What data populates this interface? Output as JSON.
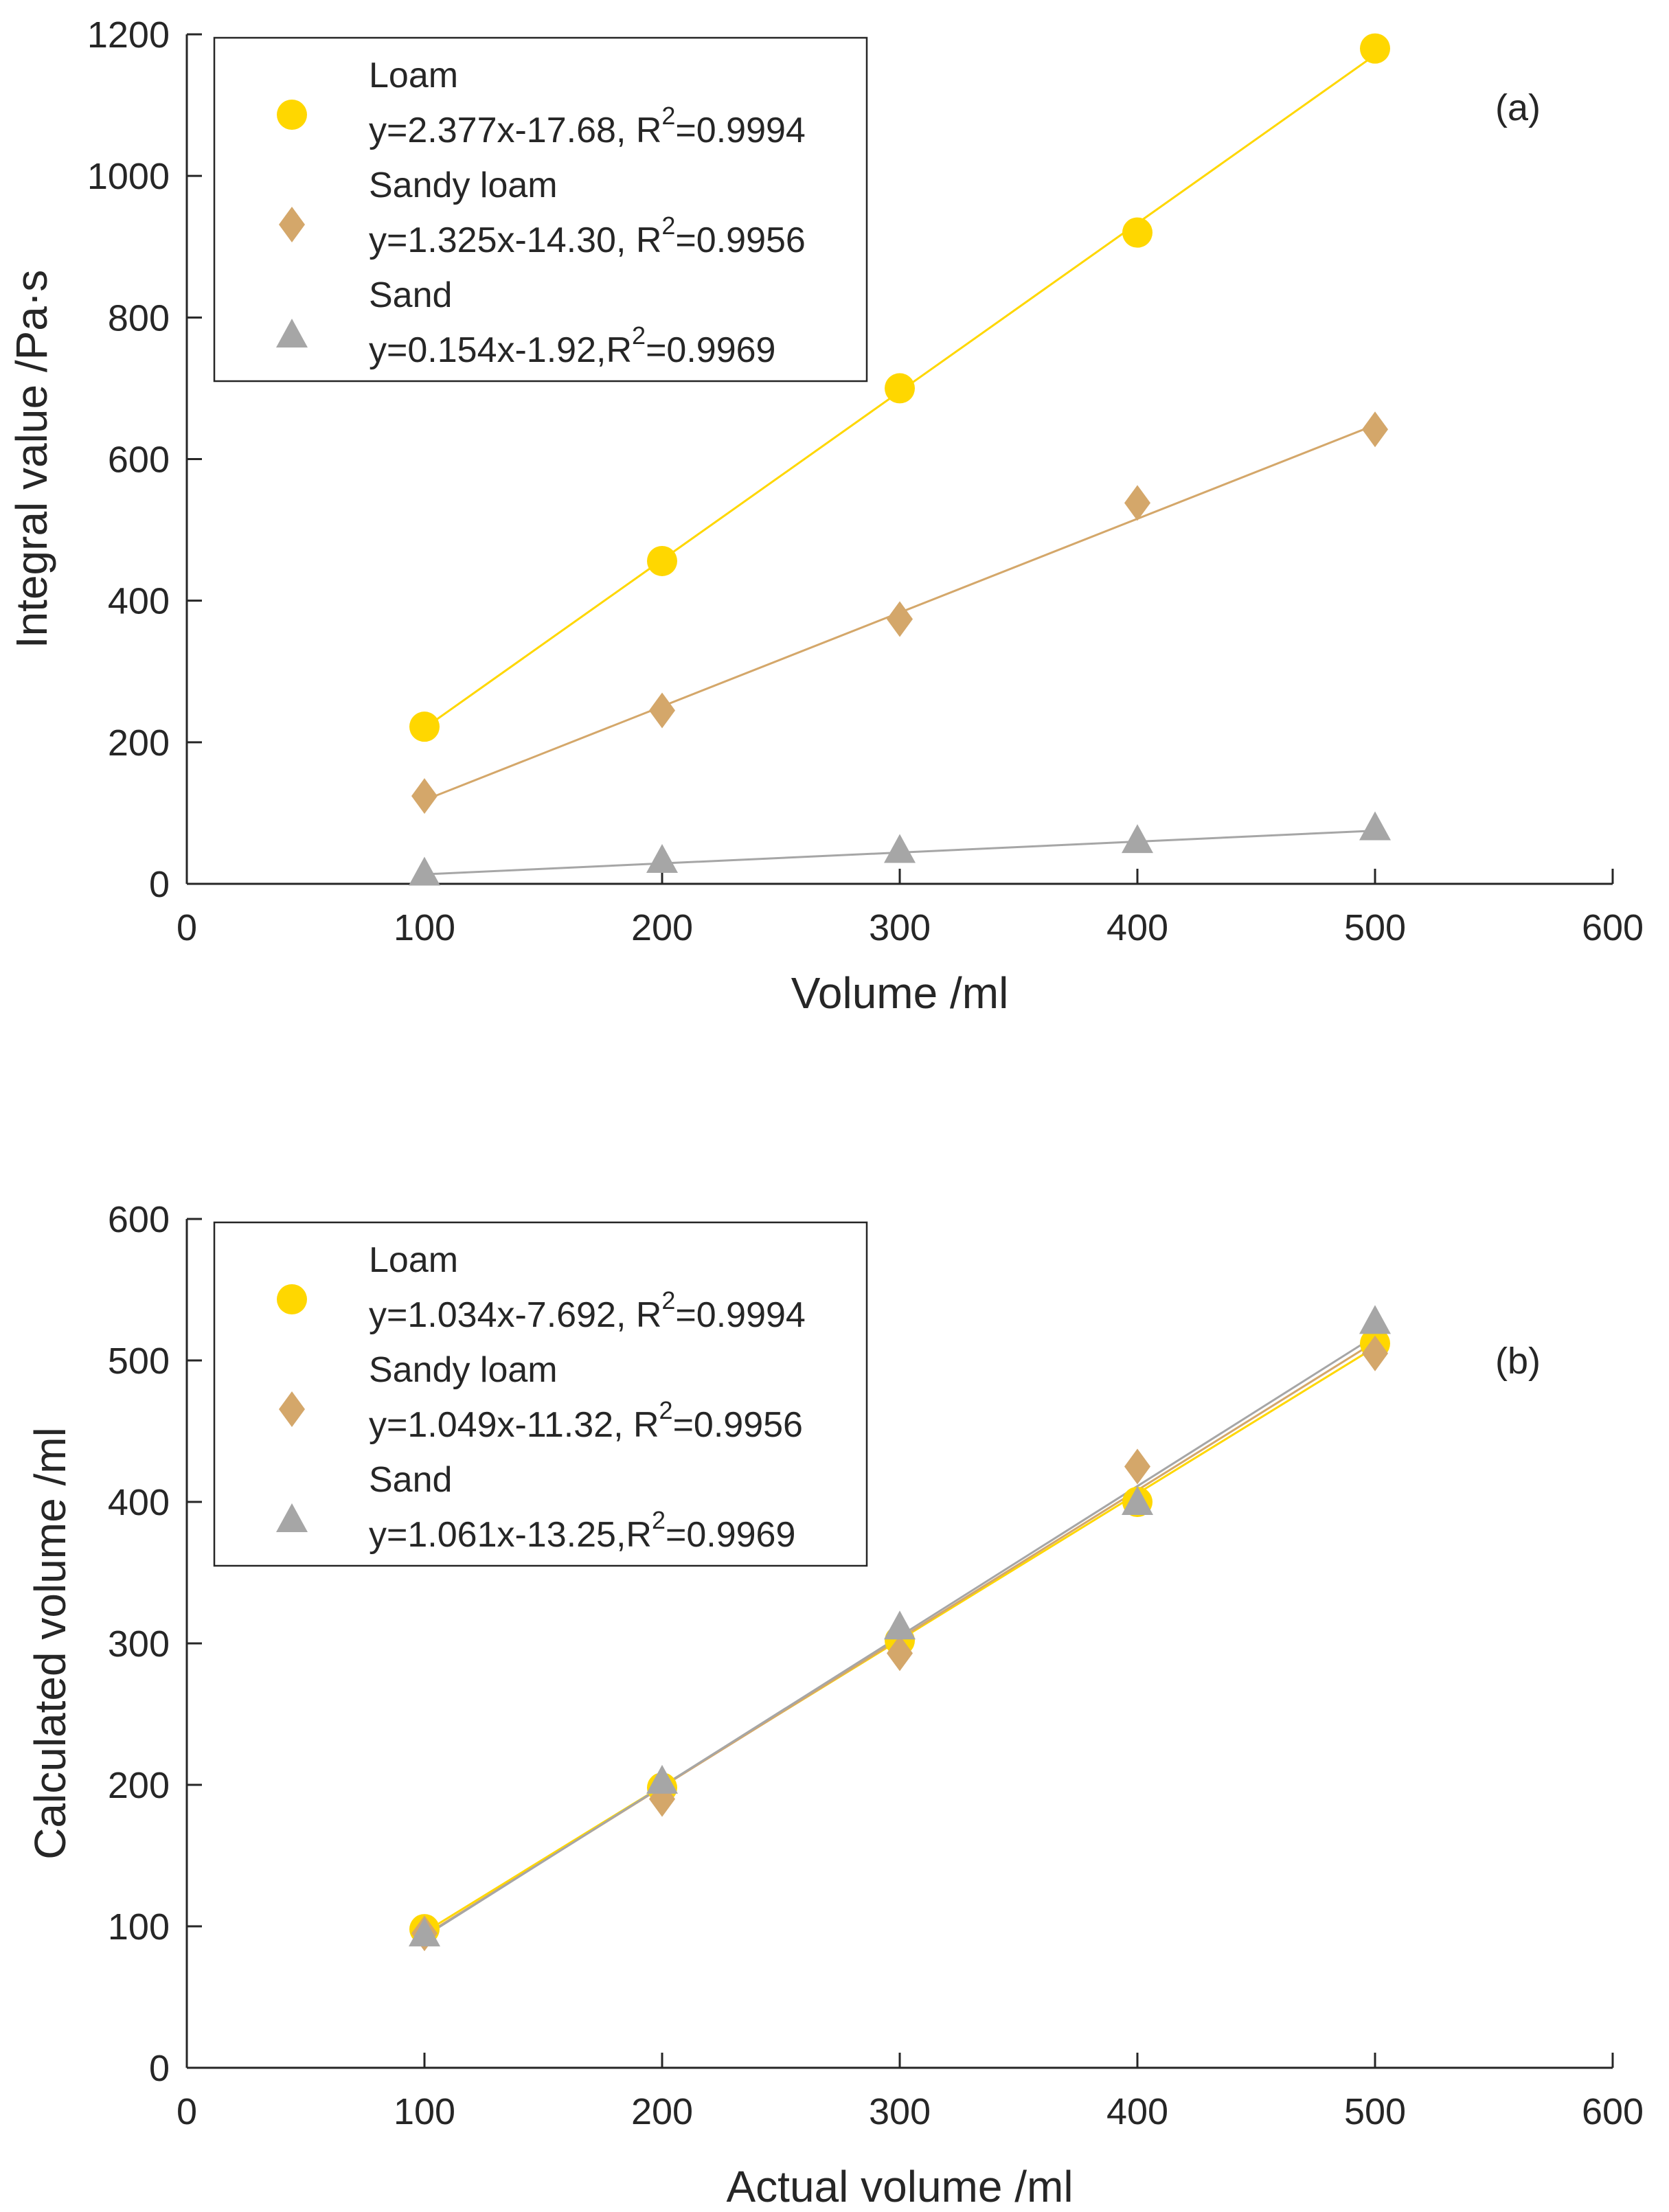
{
  "chart_data": [
    {
      "type": "scatter",
      "panel_label": "(a)",
      "xlabel": "Volume /ml",
      "ylabel": "Integral value /Pa·s",
      "xlim": [
        0,
        600
      ],
      "ylim": [
        0,
        1200
      ],
      "xticks": [
        0,
        100,
        200,
        300,
        400,
        500,
        600
      ],
      "yticks": [
        0,
        200,
        400,
        600,
        800,
        1000,
        1200
      ],
      "legend_position": "top-left",
      "series": [
        {
          "name": "Loam",
          "marker": "circle",
          "color": "#FFD700",
          "equation_text": "y=2.377x-17.68, R",
          "r2_text": "=0.9994",
          "x": [
            100,
            200,
            300,
            400,
            500
          ],
          "y": [
            222,
            456,
            700,
            920,
            1180
          ],
          "fit": {
            "slope": 2.377,
            "intercept": -17.68
          }
        },
        {
          "name": "Sandy loam",
          "marker": "diamond",
          "color": "#D4A76A",
          "equation_text": "y=1.325x-14.30, R",
          "r2_text": "=0.9956",
          "x": [
            100,
            200,
            300,
            400,
            500
          ],
          "y": [
            124,
            245,
            374,
            538,
            642
          ],
          "fit": {
            "slope": 1.325,
            "intercept": -14.3
          }
        },
        {
          "name": "Sand",
          "marker": "triangle",
          "color": "#A6A6A6",
          "equation_text": "y=0.154x-1.92,R",
          "r2_text": "=0.9969",
          "x": [
            100,
            200,
            300,
            400,
            500
          ],
          "y": [
            16,
            34,
            48,
            62,
            80
          ],
          "fit": {
            "slope": 0.154,
            "intercept": -1.92
          }
        }
      ]
    },
    {
      "type": "scatter",
      "panel_label": "(b)",
      "xlabel": "Actual volume /ml",
      "ylabel": "Calculated volume /ml",
      "xlim": [
        0,
        600
      ],
      "ylim": [
        0,
        600
      ],
      "xticks": [
        0,
        100,
        200,
        300,
        400,
        500,
        600
      ],
      "yticks": [
        0,
        100,
        200,
        300,
        400,
        500,
        600
      ],
      "legend_position": "top-left",
      "series": [
        {
          "name": "Loam",
          "marker": "circle",
          "color": "#FFD700",
          "equation_text": "y=1.034x-7.692, R",
          "r2_text": "=0.9994",
          "x": [
            100,
            200,
            300,
            400,
            500
          ],
          "y": [
            98,
            198,
            302,
            400,
            512
          ],
          "fit": {
            "slope": 1.034,
            "intercept": -7.692
          }
        },
        {
          "name": "Sandy loam",
          "marker": "diamond",
          "color": "#D4A76A",
          "equation_text": "y=1.049x-11.32, R",
          "r2_text": "=0.9956",
          "x": [
            100,
            200,
            300,
            400,
            500
          ],
          "y": [
            95,
            190,
            293,
            425,
            505
          ],
          "fit": {
            "slope": 1.049,
            "intercept": -11.32
          }
        },
        {
          "name": "Sand",
          "marker": "triangle",
          "color": "#A6A6A6",
          "equation_text": "y=1.061x-13.25,R",
          "r2_text": "=0.9969",
          "x": [
            100,
            200,
            300,
            400,
            500
          ],
          "y": [
            95,
            203,
            312,
            400,
            528
          ],
          "fit": {
            "slope": 1.061,
            "intercept": -13.25
          }
        }
      ]
    }
  ],
  "superscript": "2"
}
